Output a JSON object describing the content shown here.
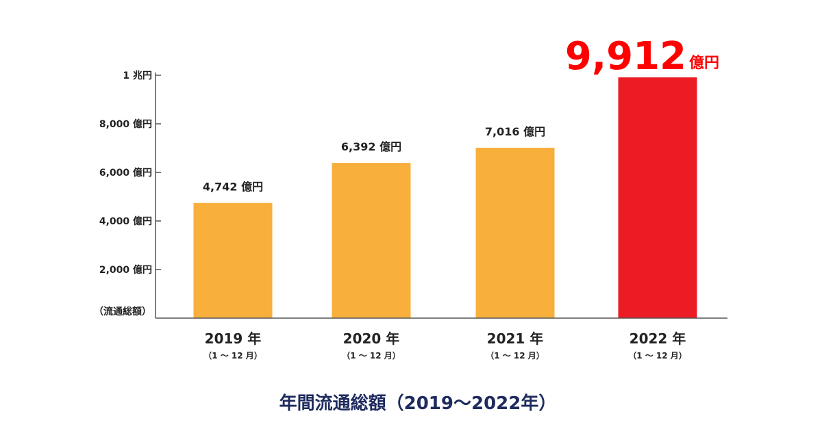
{
  "chart_data": {
    "type": "bar",
    "title": "年間流通総額（2019〜2022年）",
    "ylabel": "（流通総額）",
    "ylim": [
      0,
      10000
    ],
    "yticks": [
      {
        "value": 2000,
        "label": "2,000 億円"
      },
      {
        "value": 4000,
        "label": "4,000 億円"
      },
      {
        "value": 6000,
        "label": "6,000 億円"
      },
      {
        "value": 8000,
        "label": "8,000 億円"
      },
      {
        "value": 10000,
        "label": "1 兆円"
      }
    ],
    "categories": [
      "2019 年",
      "2020 年",
      "2021 年",
      "2022 年"
    ],
    "category_subs": [
      "（1 〜 12 月）",
      "（1 〜 12 月）",
      "（1 〜 12 月）",
      "（1 〜 12 月）"
    ],
    "values": [
      4742,
      6392,
      7016,
      9912
    ],
    "value_labels": [
      "4,742 億円",
      "6,392 億円",
      "7,016 億円",
      "9,912"
    ],
    "highlight_unit": "億円",
    "colors": [
      "#f8af3c",
      "#f8af3c",
      "#f8af3c",
      "#ec1c24"
    ],
    "highlight_label_color": "#ff0000"
  }
}
